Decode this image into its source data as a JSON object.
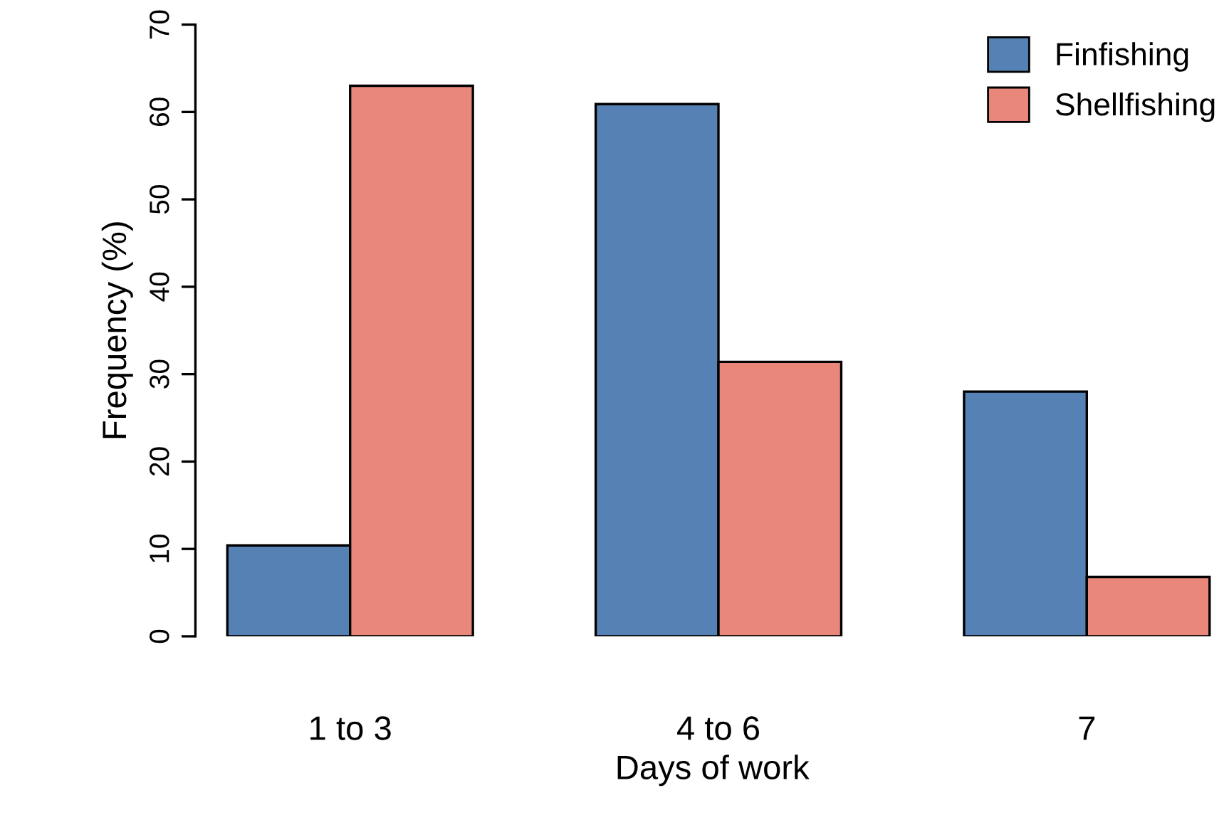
{
  "chart_data": {
    "type": "bar",
    "xlabel": "Days of work",
    "ylabel": "Frequency (%)",
    "categories": [
      "1 to 3",
      "4 to 6",
      "7"
    ],
    "series": [
      {
        "name": "Finfishing",
        "color": "#5581b4",
        "values": [
          10.4,
          60.9,
          28.0
        ]
      },
      {
        "name": "Shellfishing",
        "color": "#e8877a",
        "values": [
          63.0,
          31.4,
          6.8
        ]
      }
    ],
    "ylim": [
      0,
      70
    ],
    "yticks": [
      0,
      10,
      20,
      30,
      40,
      50,
      60,
      70
    ],
    "grid": false,
    "legend": "top right"
  }
}
